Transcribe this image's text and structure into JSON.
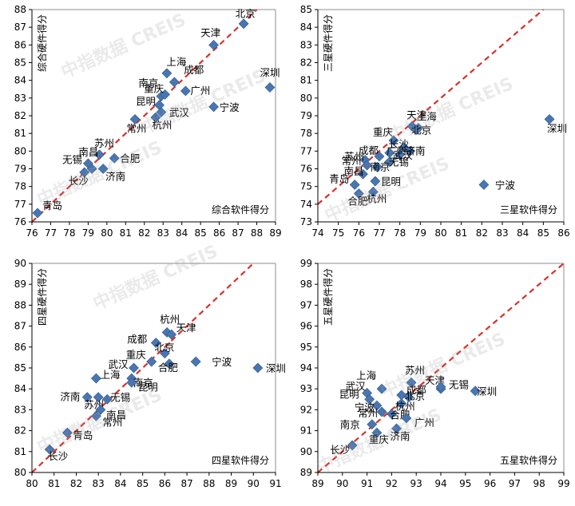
{
  "watermark": "中指数据 CREIS",
  "colors": {
    "point": "#4a76b0",
    "point_stroke": "#2f5a92",
    "diagonal": "#d9302a",
    "axis": "#000000",
    "frame": "#8c8c8c",
    "text": "#000000"
  },
  "chart_data": [
    {
      "type": "scatter",
      "xlabel": "综合软件得分",
      "ylabel": "综合硬件得分",
      "xlim": [
        76,
        89
      ],
      "ylim": [
        76,
        88
      ],
      "xticks": [
        76,
        77,
        78,
        79,
        80,
        81,
        82,
        83,
        84,
        85,
        86,
        87,
        88,
        89
      ],
      "yticks": [
        76,
        77,
        78,
        79,
        80,
        81,
        82,
        83,
        84,
        85,
        86,
        87,
        88
      ],
      "diagonal": true,
      "points": [
        {
          "label": "北京",
          "x": 87.3,
          "y": 87.2
        },
        {
          "label": "天津",
          "x": 85.7,
          "y": 86.0
        },
        {
          "label": "深圳",
          "x": 88.7,
          "y": 83.6
        },
        {
          "label": "上海",
          "x": 83.2,
          "y": 84.4
        },
        {
          "label": "成都",
          "x": 83.6,
          "y": 83.9
        },
        {
          "label": "南京",
          "x": 82.9,
          "y": 83.1
        },
        {
          "label": "广州",
          "x": 84.2,
          "y": 83.4
        },
        {
          "label": "重庆",
          "x": 83.1,
          "y": 83.2
        },
        {
          "label": "宁波",
          "x": 85.7,
          "y": 82.5
        },
        {
          "label": "昆明",
          "x": 82.8,
          "y": 82.6
        },
        {
          "label": "武汉",
          "x": 82.9,
          "y": 82.2
        },
        {
          "label": "杭州",
          "x": 82.6,
          "y": 81.9
        },
        {
          "label": "常州",
          "x": 81.5,
          "y": 81.8
        },
        {
          "label": "苏州",
          "x": 79.6,
          "y": 79.8
        },
        {
          "label": "南昌",
          "x": 79.0,
          "y": 79.3
        },
        {
          "label": "合肥",
          "x": 80.4,
          "y": 79.6
        },
        {
          "label": "无锡",
          "x": 79.2,
          "y": 79.0
        },
        {
          "label": "济南",
          "x": 79.8,
          "y": 79.0
        },
        {
          "label": "长沙",
          "x": 78.8,
          "y": 78.8
        },
        {
          "label": "青岛",
          "x": 76.3,
          "y": 76.5
        }
      ]
    },
    {
      "type": "scatter",
      "xlabel": "三星软件得分",
      "ylabel": "三星硬件得分",
      "xlim": [
        74,
        86
      ],
      "ylim": [
        73,
        85
      ],
      "xticks": [
        74,
        75,
        76,
        77,
        78,
        79,
        80,
        81,
        82,
        83,
        84,
        85,
        86
      ],
      "yticks": [
        73,
        74,
        75,
        76,
        77,
        78,
        79,
        80,
        81,
        82,
        83,
        84,
        85
      ],
      "diagonal": true,
      "points": [
        {
          "label": "深圳",
          "x": 85.3,
          "y": 78.8
        },
        {
          "label": "天津",
          "x": 78.6,
          "y": 78.4
        },
        {
          "label": "上海",
          "x": 78.9,
          "y": 78.3
        },
        {
          "label": "北京",
          "x": 78.8,
          "y": 78.2
        },
        {
          "label": "重庆",
          "x": 77.7,
          "y": 77.6
        },
        {
          "label": "长沙",
          "x": 78.2,
          "y": 77.2
        },
        {
          "label": "济南",
          "x": 78.5,
          "y": 77.0
        },
        {
          "label": "成都",
          "x": 77.0,
          "y": 76.7
        },
        {
          "label": "广州",
          "x": 77.5,
          "y": 76.9
        },
        {
          "label": "武汉",
          "x": 78.0,
          "y": 76.8
        },
        {
          "label": "苏州",
          "x": 76.3,
          "y": 76.5
        },
        {
          "label": "无锡",
          "x": 77.5,
          "y": 76.4
        },
        {
          "label": "常州",
          "x": 76.4,
          "y": 76.2
        },
        {
          "label": "南京",
          "x": 76.9,
          "y": 76.1
        },
        {
          "label": "南昌",
          "x": 76.2,
          "y": 75.7
        },
        {
          "label": "青岛",
          "x": 75.8,
          "y": 75.1
        },
        {
          "label": "昆明",
          "x": 76.8,
          "y": 75.3
        },
        {
          "label": "杭州",
          "x": 76.7,
          "y": 74.7
        },
        {
          "label": "合肥",
          "x": 76.0,
          "y": 74.6
        },
        {
          "label": "宁波",
          "x": 82.1,
          "y": 75.1
        }
      ]
    },
    {
      "type": "scatter",
      "xlabel": "四星软件得分",
      "ylabel": "四星硬件得分",
      "xlim": [
        80,
        91
      ],
      "ylim": [
        80,
        90
      ],
      "xticks": [
        80,
        81,
        82,
        83,
        84,
        85,
        86,
        87,
        88,
        89,
        90,
        91
      ],
      "yticks": [
        80,
        81,
        82,
        83,
        84,
        85,
        86,
        87,
        88,
        89,
        90
      ],
      "diagonal": true,
      "points": [
        {
          "label": "杭州",
          "x": 86.1,
          "y": 86.7
        },
        {
          "label": "天津",
          "x": 86.3,
          "y": 86.6
        },
        {
          "label": "成都",
          "x": 85.6,
          "y": 86.2
        },
        {
          "label": "北京",
          "x": 86.0,
          "y": 85.7
        },
        {
          "label": "重庆",
          "x": 85.4,
          "y": 85.3
        },
        {
          "label": "宁波",
          "x": 87.4,
          "y": 85.3
        },
        {
          "label": "深圳",
          "x": 90.2,
          "y": 85.0
        },
        {
          "label": "武汉",
          "x": 84.6,
          "y": 85.0
        },
        {
          "label": "合肥",
          "x": 86.2,
          "y": 85.2
        },
        {
          "label": "上海",
          "x": 82.9,
          "y": 84.5
        },
        {
          "label": "南京",
          "x": 84.5,
          "y": 84.5
        },
        {
          "label": "昆明",
          "x": 84.5,
          "y": 84.3
        },
        {
          "label": "济南",
          "x": 82.5,
          "y": 83.6
        },
        {
          "label": "苏州",
          "x": 83.0,
          "y": 83.6
        },
        {
          "label": "无锡",
          "x": 83.4,
          "y": 83.5
        },
        {
          "label": "南昌",
          "x": 83.1,
          "y": 83.0
        },
        {
          "label": "常州",
          "x": 82.9,
          "y": 82.7
        },
        {
          "label": "青岛",
          "x": 81.6,
          "y": 81.9
        },
        {
          "label": "长沙",
          "x": 80.8,
          "y": 81.1
        }
      ]
    },
    {
      "type": "scatter",
      "xlabel": "五星软件得分",
      "ylabel": "五星硬件得分",
      "xlim": [
        89,
        99
      ],
      "ylim": [
        89,
        99
      ],
      "xticks": [
        89,
        90,
        91,
        92,
        93,
        94,
        95,
        96,
        97,
        98,
        99
      ],
      "yticks": [
        89,
        90,
        91,
        92,
        93,
        94,
        95,
        96,
        97,
        98,
        99
      ],
      "diagonal": true,
      "points": [
        {
          "label": "苏州",
          "x": 92.8,
          "y": 93.3
        },
        {
          "label": "天津",
          "x": 94.0,
          "y": 93.0
        },
        {
          "label": "无锡",
          "x": 94.0,
          "y": 93.1
        },
        {
          "label": "深圳",
          "x": 95.4,
          "y": 92.9
        },
        {
          "label": "上海",
          "x": 91.6,
          "y": 93.0
        },
        {
          "label": "武汉",
          "x": 91.0,
          "y": 92.8
        },
        {
          "label": "成都",
          "x": 92.4,
          "y": 92.7
        },
        {
          "label": "北京",
          "x": 92.7,
          "y": 92.6
        },
        {
          "label": "昆明",
          "x": 91.1,
          "y": 92.5
        },
        {
          "label": "宁波",
          "x": 91.4,
          "y": 92.2
        },
        {
          "label": "杭州",
          "x": 92.4,
          "y": 92.3
        },
        {
          "label": "常州",
          "x": 91.6,
          "y": 91.9
        },
        {
          "label": "合肥",
          "x": 92.0,
          "y": 91.8
        },
        {
          "label": "广州",
          "x": 92.6,
          "y": 91.6
        },
        {
          "label": "南京",
          "x": 91.2,
          "y": 91.3
        },
        {
          "label": "济南",
          "x": 92.2,
          "y": 91.1
        },
        {
          "label": "重庆",
          "x": 91.4,
          "y": 90.9
        },
        {
          "label": "长沙",
          "x": 90.4,
          "y": 90.3
        }
      ]
    }
  ]
}
